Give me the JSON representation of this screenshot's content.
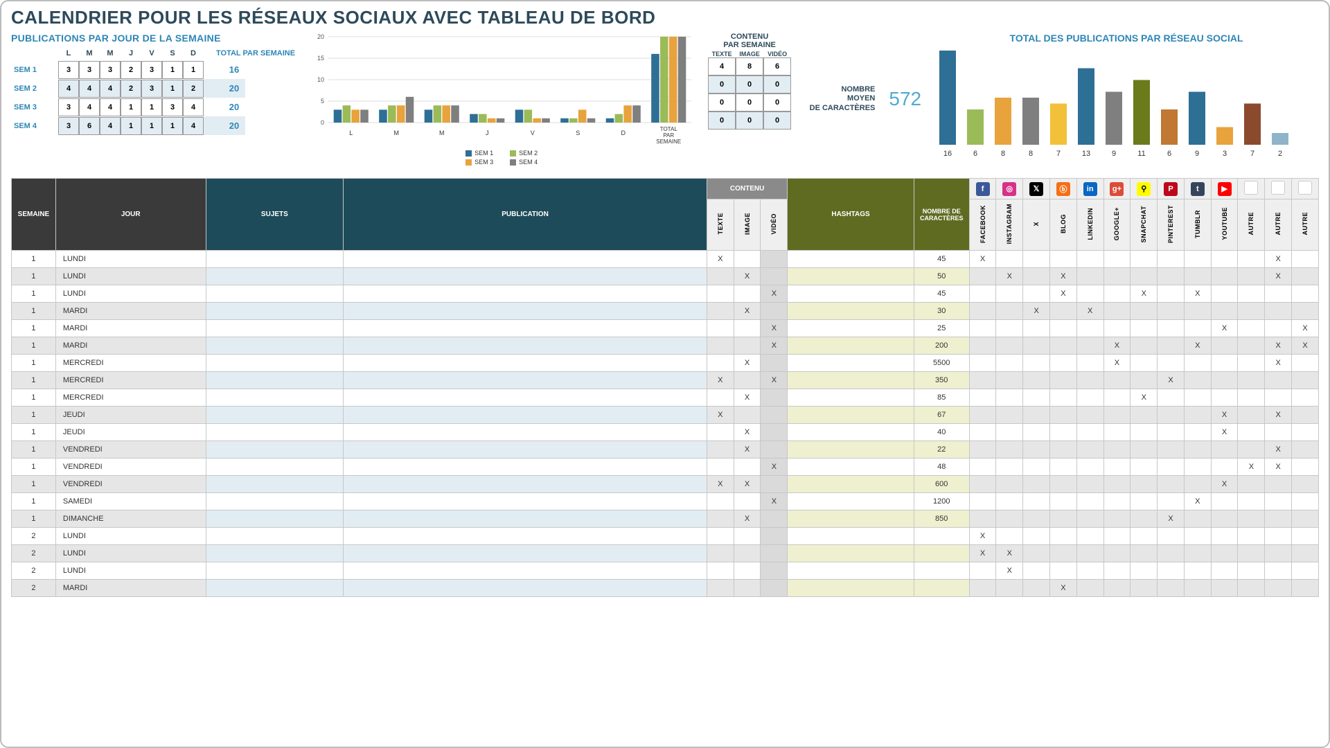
{
  "title": "CALENDRIER POUR LES RÉSEAUX SOCIAUX AVEC TABLEAU DE BORD",
  "colors": {
    "sem1": "#2e6f95",
    "sem2": "#9bbb59",
    "sem3": "#e8a33d",
    "sem4": "#7f7f7f",
    "teal": "#1e4b5a",
    "olive": "#606b22"
  },
  "weekTable": {
    "title": "PUBLICATIONS PAR JOUR DE LA SEMAINE",
    "days": [
      "L",
      "M",
      "M",
      "J",
      "V",
      "S",
      "D"
    ],
    "totalLabel": "TOTAL PAR SEMAINE",
    "rows": [
      {
        "label": "SEM 1",
        "cells": [
          3,
          3,
          3,
          2,
          3,
          1,
          1
        ],
        "total": 16
      },
      {
        "label": "SEM 2",
        "cells": [
          4,
          4,
          4,
          2,
          3,
          1,
          2
        ],
        "total": 20
      },
      {
        "label": "SEM 3",
        "cells": [
          3,
          4,
          4,
          1,
          1,
          3,
          4
        ],
        "total": 20
      },
      {
        "label": "SEM 4",
        "cells": [
          3,
          6,
          4,
          1,
          1,
          1,
          4
        ],
        "total": 20
      }
    ]
  },
  "groupedChart": {
    "ylim": 20,
    "ytick": 5,
    "groups": [
      "L",
      "M",
      "M",
      "J",
      "V",
      "S",
      "D",
      "TOTAL PAR SEMAINE"
    ],
    "series": [
      {
        "name": "SEM 1",
        "color": "#2e6f95",
        "values": [
          3,
          3,
          3,
          2,
          3,
          1,
          1,
          16
        ]
      },
      {
        "name": "SEM 2",
        "color": "#9bbb59",
        "values": [
          4,
          4,
          4,
          2,
          3,
          1,
          2,
          20
        ]
      },
      {
        "name": "SEM 3",
        "color": "#e8a33d",
        "values": [
          3,
          4,
          4,
          1,
          1,
          3,
          4,
          20
        ]
      },
      {
        "name": "SEM 4",
        "color": "#7f7f7f",
        "values": [
          3,
          6,
          4,
          1,
          1,
          1,
          4,
          20
        ]
      }
    ]
  },
  "contentPerWeek": {
    "title": "CONTENU PAR SEMAINE",
    "heads": [
      "TEXTE",
      "IMAGE",
      "VIDÉO"
    ],
    "rows": [
      [
        4,
        8,
        6
      ],
      [
        0,
        0,
        0
      ],
      [
        0,
        0,
        0
      ],
      [
        0,
        0,
        0
      ]
    ]
  },
  "avg": {
    "label1": "NOMBRE",
    "label2": "MOYEN",
    "label3": "DE CARACTÈRES",
    "value": "572"
  },
  "networkChart": {
    "title": "TOTAL DES PUBLICATIONS PAR RÉSEAU SOCIAL",
    "bars": [
      {
        "v": 16,
        "c": "#2e6f95"
      },
      {
        "v": 6,
        "c": "#9bbb59"
      },
      {
        "v": 8,
        "c": "#e8a33d"
      },
      {
        "v": 8,
        "c": "#7f7f7f"
      },
      {
        "v": 7,
        "c": "#f2c039"
      },
      {
        "v": 13,
        "c": "#2e6f95"
      },
      {
        "v": 9,
        "c": "#7f7f7f"
      },
      {
        "v": 11,
        "c": "#6b7a1a"
      },
      {
        "v": 6,
        "c": "#c07833"
      },
      {
        "v": 9,
        "c": "#2e6f95"
      },
      {
        "v": 3,
        "c": "#e8a33d"
      },
      {
        "v": 7,
        "c": "#8b4a2e"
      },
      {
        "v": 2,
        "c": "#8fb4c9"
      }
    ]
  },
  "grid": {
    "headers": {
      "semaine": "SEMAINE",
      "jour": "JOUR",
      "sujets": "SUJETS",
      "publication": "PUBLICATION",
      "contenu": "CONTENU",
      "texte": "TEXTE",
      "image": "IMAGE",
      "video": "VIDÉO",
      "hashtags": "HASHTAGS",
      "nbc": "NOMBRE DE CARACTÈRES",
      "networks": [
        "FACEBOOK",
        "INSTAGRAM",
        "X",
        "BLOG",
        "LINKEDIN",
        "GOOGLE+",
        "SNAPCHAT",
        "PINTEREST",
        "TUMBLR",
        "YOUTUBE",
        "AUTRE",
        "AUTRE",
        "AUTRE"
      ]
    },
    "netIcons": [
      {
        "bg": "#3b5998",
        "t": "f"
      },
      {
        "bg": "#d6318a",
        "t": "◎"
      },
      {
        "bg": "#000",
        "t": "𝕏"
      },
      {
        "bg": "#f56f17",
        "t": "ⓑ"
      },
      {
        "bg": "#0a66c2",
        "t": "in"
      },
      {
        "bg": "#dd4b39",
        "t": "g+"
      },
      {
        "bg": "#fffc00",
        "t": "⚲",
        "fg": "#000"
      },
      {
        "bg": "#bd081c",
        "t": "P"
      },
      {
        "bg": "#35465c",
        "t": "t"
      },
      {
        "bg": "#ff0000",
        "t": "▶"
      },
      {
        "bg": "#fff",
        "t": ""
      },
      {
        "bg": "#fff",
        "t": ""
      },
      {
        "bg": "#fff",
        "t": ""
      }
    ],
    "rows": [
      {
        "sem": 1,
        "jour": "LUNDI",
        "t": "X",
        "i": "",
        "v": "",
        "nbc": 45,
        "nets": [
          1,
          0,
          0,
          0,
          0,
          0,
          0,
          0,
          0,
          0,
          0,
          1,
          0
        ]
      },
      {
        "sem": 1,
        "jour": "LUNDI",
        "t": "",
        "i": "X",
        "v": "",
        "nbc": 50,
        "nets": [
          0,
          1,
          0,
          1,
          0,
          0,
          0,
          0,
          0,
          0,
          0,
          1,
          0
        ]
      },
      {
        "sem": 1,
        "jour": "LUNDI",
        "t": "",
        "i": "",
        "v": "X",
        "nbc": 45,
        "nets": [
          0,
          0,
          0,
          1,
          0,
          0,
          1,
          0,
          1,
          0,
          0,
          0,
          0
        ]
      },
      {
        "sem": 1,
        "jour": "MARDI",
        "t": "",
        "i": "X",
        "v": "",
        "nbc": 30,
        "nets": [
          0,
          0,
          1,
          0,
          1,
          0,
          0,
          0,
          0,
          0,
          0,
          0,
          0
        ]
      },
      {
        "sem": 1,
        "jour": "MARDI",
        "t": "",
        "i": "",
        "v": "X",
        "nbc": 25,
        "nets": [
          0,
          0,
          0,
          0,
          0,
          0,
          0,
          0,
          0,
          1,
          0,
          0,
          1
        ]
      },
      {
        "sem": 1,
        "jour": "MARDI",
        "t": "",
        "i": "",
        "v": "X",
        "nbc": 200,
        "nets": [
          0,
          0,
          0,
          0,
          0,
          1,
          0,
          0,
          1,
          0,
          0,
          1,
          1
        ]
      },
      {
        "sem": 1,
        "jour": "MERCREDI",
        "t": "",
        "i": "X",
        "v": "",
        "nbc": 5500,
        "nets": [
          0,
          0,
          0,
          0,
          0,
          1,
          0,
          0,
          0,
          0,
          0,
          1,
          0
        ]
      },
      {
        "sem": 1,
        "jour": "MERCREDI",
        "t": "X",
        "i": "",
        "v": "X",
        "nbc": 350,
        "nets": [
          0,
          0,
          0,
          0,
          0,
          0,
          0,
          1,
          0,
          0,
          0,
          0,
          0
        ]
      },
      {
        "sem": 1,
        "jour": "MERCREDI",
        "t": "",
        "i": "X",
        "v": "",
        "nbc": 85,
        "nets": [
          0,
          0,
          0,
          0,
          0,
          0,
          1,
          0,
          0,
          0,
          0,
          0,
          0
        ]
      },
      {
        "sem": 1,
        "jour": "JEUDI",
        "t": "X",
        "i": "",
        "v": "",
        "nbc": 67,
        "nets": [
          0,
          0,
          0,
          0,
          0,
          0,
          0,
          0,
          0,
          1,
          0,
          1,
          0
        ]
      },
      {
        "sem": 1,
        "jour": "JEUDI",
        "t": "",
        "i": "X",
        "v": "",
        "nbc": 40,
        "nets": [
          0,
          0,
          0,
          0,
          0,
          0,
          0,
          0,
          0,
          1,
          0,
          0,
          0
        ]
      },
      {
        "sem": 1,
        "jour": "VENDREDI",
        "t": "",
        "i": "X",
        "v": "",
        "nbc": 22,
        "nets": [
          0,
          0,
          0,
          0,
          0,
          0,
          0,
          0,
          0,
          0,
          0,
          1,
          0
        ]
      },
      {
        "sem": 1,
        "jour": "VENDREDI",
        "t": "",
        "i": "",
        "v": "X",
        "nbc": 48,
        "nets": [
          0,
          0,
          0,
          0,
          0,
          0,
          0,
          0,
          0,
          0,
          1,
          1,
          0
        ]
      },
      {
        "sem": 1,
        "jour": "VENDREDI",
        "t": "X",
        "i": "X",
        "v": "",
        "nbc": 600,
        "nets": [
          0,
          0,
          0,
          0,
          0,
          0,
          0,
          0,
          0,
          1,
          0,
          0,
          0
        ]
      },
      {
        "sem": 1,
        "jour": "SAMEDI",
        "t": "",
        "i": "",
        "v": "X",
        "nbc": 1200,
        "nets": [
          0,
          0,
          0,
          0,
          0,
          0,
          0,
          0,
          1,
          0,
          0,
          0,
          0
        ]
      },
      {
        "sem": 1,
        "jour": "DIMANCHE",
        "t": "",
        "i": "X",
        "v": "",
        "nbc": 850,
        "nets": [
          0,
          0,
          0,
          0,
          0,
          0,
          0,
          1,
          0,
          0,
          0,
          0,
          0
        ]
      },
      {
        "sem": 2,
        "jour": "LUNDI",
        "t": "",
        "i": "",
        "v": "",
        "nbc": "",
        "nets": [
          1,
          0,
          0,
          0,
          0,
          0,
          0,
          0,
          0,
          0,
          0,
          0,
          0
        ]
      },
      {
        "sem": 2,
        "jour": "LUNDI",
        "t": "",
        "i": "",
        "v": "",
        "nbc": "",
        "nets": [
          1,
          1,
          0,
          0,
          0,
          0,
          0,
          0,
          0,
          0,
          0,
          0,
          0
        ]
      },
      {
        "sem": 2,
        "jour": "LUNDI",
        "t": "",
        "i": "",
        "v": "",
        "nbc": "",
        "nets": [
          0,
          1,
          0,
          0,
          0,
          0,
          0,
          0,
          0,
          0,
          0,
          0,
          0
        ]
      },
      {
        "sem": 2,
        "jour": "MARDI",
        "t": "",
        "i": "",
        "v": "",
        "nbc": "",
        "nets": [
          0,
          0,
          0,
          1,
          0,
          0,
          0,
          0,
          0,
          0,
          0,
          0,
          0
        ]
      }
    ]
  }
}
